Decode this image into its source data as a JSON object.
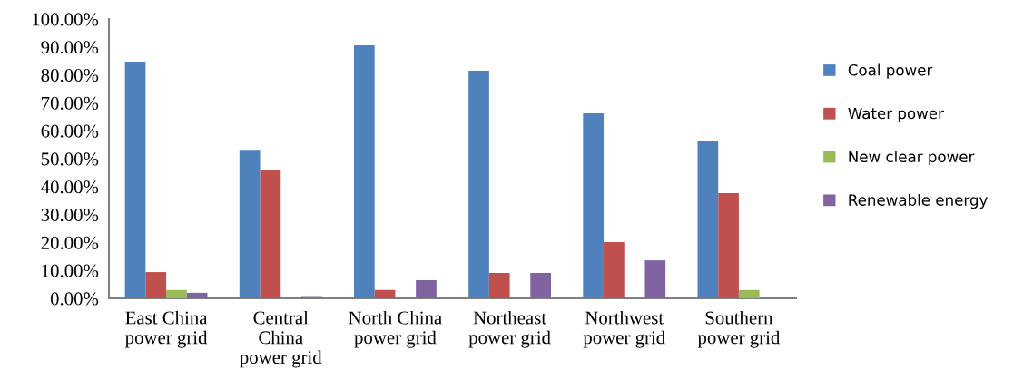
{
  "chart_data": {
    "type": "bar",
    "categories": [
      "East China\npower grid",
      "Central\nChina\npower grid",
      "North China\npower grid",
      "Northeast\npower grid",
      "Northwest\npower grid",
      "Southern\npower grid"
    ],
    "series": [
      {
        "name": "Coal power",
        "color": "#4f81bd",
        "values": [
          84.7,
          53.2,
          90.6,
          81.5,
          66.2,
          56.5
        ]
      },
      {
        "name": "Water power",
        "color": "#c0504d",
        "values": [
          9.4,
          45.8,
          3.0,
          9.1,
          20.1,
          37.7
        ]
      },
      {
        "name": "New clear power",
        "color": "#9bbb59",
        "values": [
          3.0,
          0,
          0,
          0,
          0,
          3.0
        ]
      },
      {
        "name": "Renewable energy",
        "color": "#8064a2",
        "values": [
          2.0,
          0.8,
          6.5,
          9.1,
          13.6,
          0
        ]
      }
    ],
    "ylim": [
      0,
      100
    ],
    "yticks": [
      {
        "value": 0,
        "label": "0.00%"
      },
      {
        "value": 10,
        "label": "10.00%"
      },
      {
        "value": 20,
        "label": "20.00%"
      },
      {
        "value": 30,
        "label": "30.00%"
      },
      {
        "value": 40,
        "label": "40.00%"
      },
      {
        "value": 50,
        "label": "50.00%"
      },
      {
        "value": 60,
        "label": "60.00%"
      },
      {
        "value": 70,
        "label": "70.00%"
      },
      {
        "value": 80,
        "label": "80.00%"
      },
      {
        "value": 90,
        "label": "90.00%"
      },
      {
        "value": 100,
        "label": "100.00%"
      }
    ],
    "legend": "right"
  }
}
